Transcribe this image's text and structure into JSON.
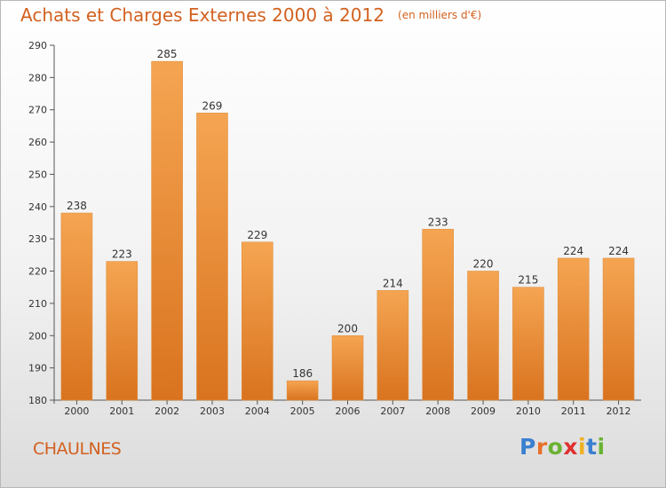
{
  "header": {
    "title": "Achats et Charges Externes 2000 à 2012",
    "unit": "(en milliers d'€)"
  },
  "footer": {
    "city": "CHAULNES",
    "logo_letters": [
      "P",
      "r",
      "o",
      "x",
      "i",
      "t",
      "i"
    ],
    "logo_colors": [
      "#3a7fd0",
      "#e8702a",
      "#6ab233",
      "#e03030",
      "#f0b022",
      "#3a7fd0",
      "#6ab233"
    ]
  },
  "colors": {
    "accent": "#d2611f",
    "bar_top": "#f5a552",
    "bar_bottom": "#d9731f"
  },
  "chart_data": {
    "type": "bar",
    "title": "Achats et Charges Externes 2000 à 2012",
    "subtitle": "(en milliers d'€)",
    "categories": [
      "2000",
      "2001",
      "2002",
      "2003",
      "2004",
      "2005",
      "2006",
      "2007",
      "2008",
      "2009",
      "2010",
      "2011",
      "2012"
    ],
    "values": [
      238,
      223,
      285,
      269,
      229,
      186,
      200,
      214,
      233,
      220,
      215,
      224,
      224
    ],
    "ylim": [
      180,
      290
    ],
    "yticks": [
      180,
      190,
      200,
      210,
      220,
      230,
      240,
      250,
      260,
      270,
      280,
      290
    ],
    "grid": false,
    "legend": "none"
  }
}
